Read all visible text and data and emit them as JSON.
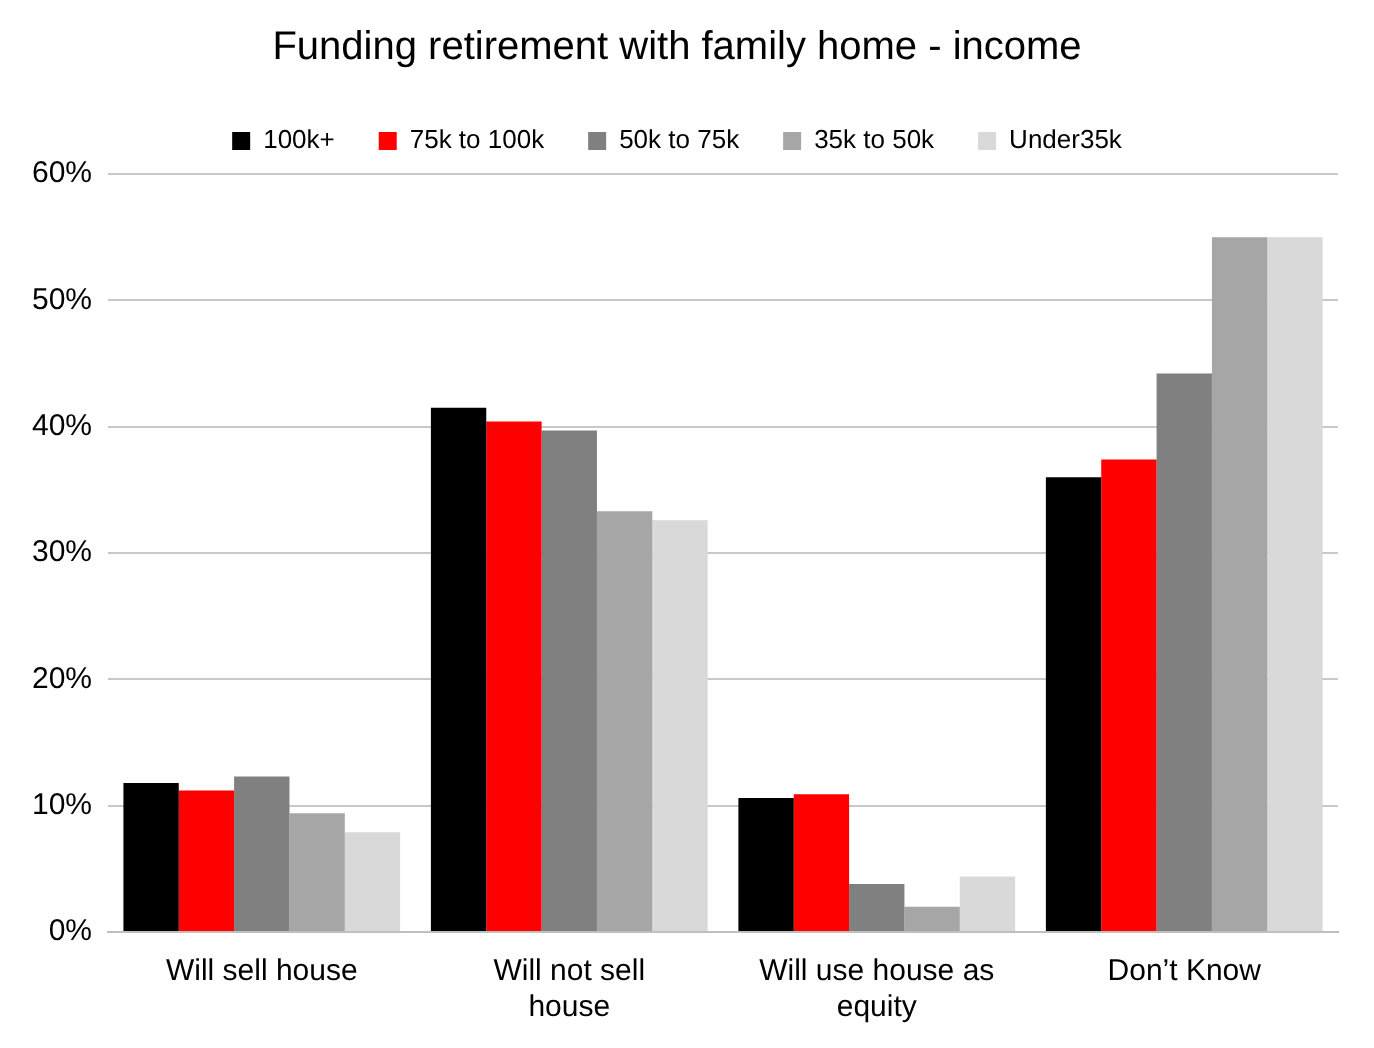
{
  "chart_data": {
    "type": "bar",
    "title": "Funding retirement with family home - income",
    "categories": [
      "Will sell house",
      "Will not sell house",
      "Will use house as equity",
      "Don’t Know"
    ],
    "series": [
      {
        "name": "100k+",
        "color": "#000000",
        "values": [
          11.8,
          41.5,
          10.6,
          36.0
        ]
      },
      {
        "name": "75k to 100k",
        "color": "#ff0000",
        "values": [
          11.2,
          40.4,
          10.9,
          37.4
        ]
      },
      {
        "name": "50k to 75k",
        "color": "#808080",
        "values": [
          12.3,
          39.7,
          3.8,
          44.2
        ]
      },
      {
        "name": "35k to 50k",
        "color": "#a6a6a6",
        "values": [
          9.4,
          33.3,
          2.0,
          55.0
        ]
      },
      {
        "name": "Under35k",
        "color": "#d9d9d9",
        "values": [
          7.9,
          32.6,
          4.4,
          55.0
        ]
      }
    ],
    "ylim": [
      0,
      60
    ],
    "yticks": [
      {
        "value": 0,
        "label": "0%"
      },
      {
        "value": 10,
        "label": "10%"
      },
      {
        "value": 20,
        "label": "20%"
      },
      {
        "value": 30,
        "label": "30%"
      },
      {
        "value": 40,
        "label": "40%"
      },
      {
        "value": 50,
        "label": "50%"
      },
      {
        "value": 60,
        "label": "60%"
      }
    ],
    "grid": "y",
    "legend": "top"
  }
}
